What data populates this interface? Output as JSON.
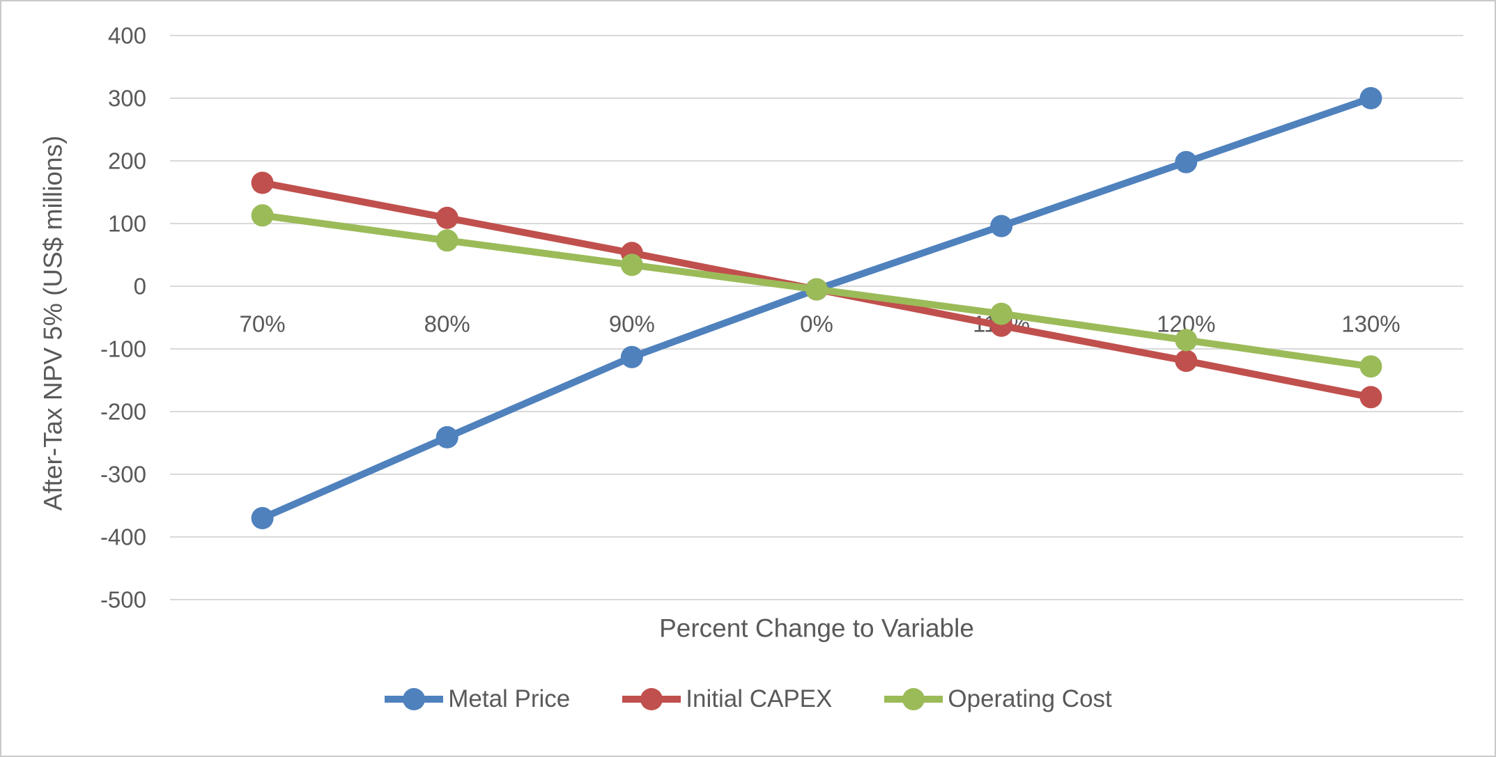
{
  "chart_data": {
    "type": "line",
    "title": "",
    "xlabel": "Percent Change to Variable",
    "ylabel": "After-Tax NPV 5% (US$ millions)",
    "categories": [
      "70%",
      "80%",
      "90%",
      "0%",
      "110%",
      "120%",
      "130%"
    ],
    "y_ticks": [
      400,
      300,
      200,
      100,
      0,
      -100,
      -200,
      -300,
      -400,
      -500
    ],
    "ylim": [
      -500,
      400
    ],
    "grid": "horizontal",
    "legend_position": "bottom",
    "series": [
      {
        "name": "Metal Price",
        "color": "#4F81BD",
        "values": [
          -370,
          -241,
          -113,
          -5,
          96,
          198,
          300
        ]
      },
      {
        "name": "Initial CAPEX",
        "color": "#C0504D",
        "values": [
          165,
          109,
          53,
          -5,
          -63,
          -119,
          -177
        ]
      },
      {
        "name": "Operating Cost",
        "color": "#9BBB59",
        "values": [
          113,
          73,
          34,
          -5,
          -44,
          -86,
          -128
        ]
      }
    ]
  },
  "style": {
    "grid_color": "#D9D9D9",
    "text_color": "#595959",
    "background": "#FFFFFF",
    "border_color": "#C9C9C9"
  }
}
